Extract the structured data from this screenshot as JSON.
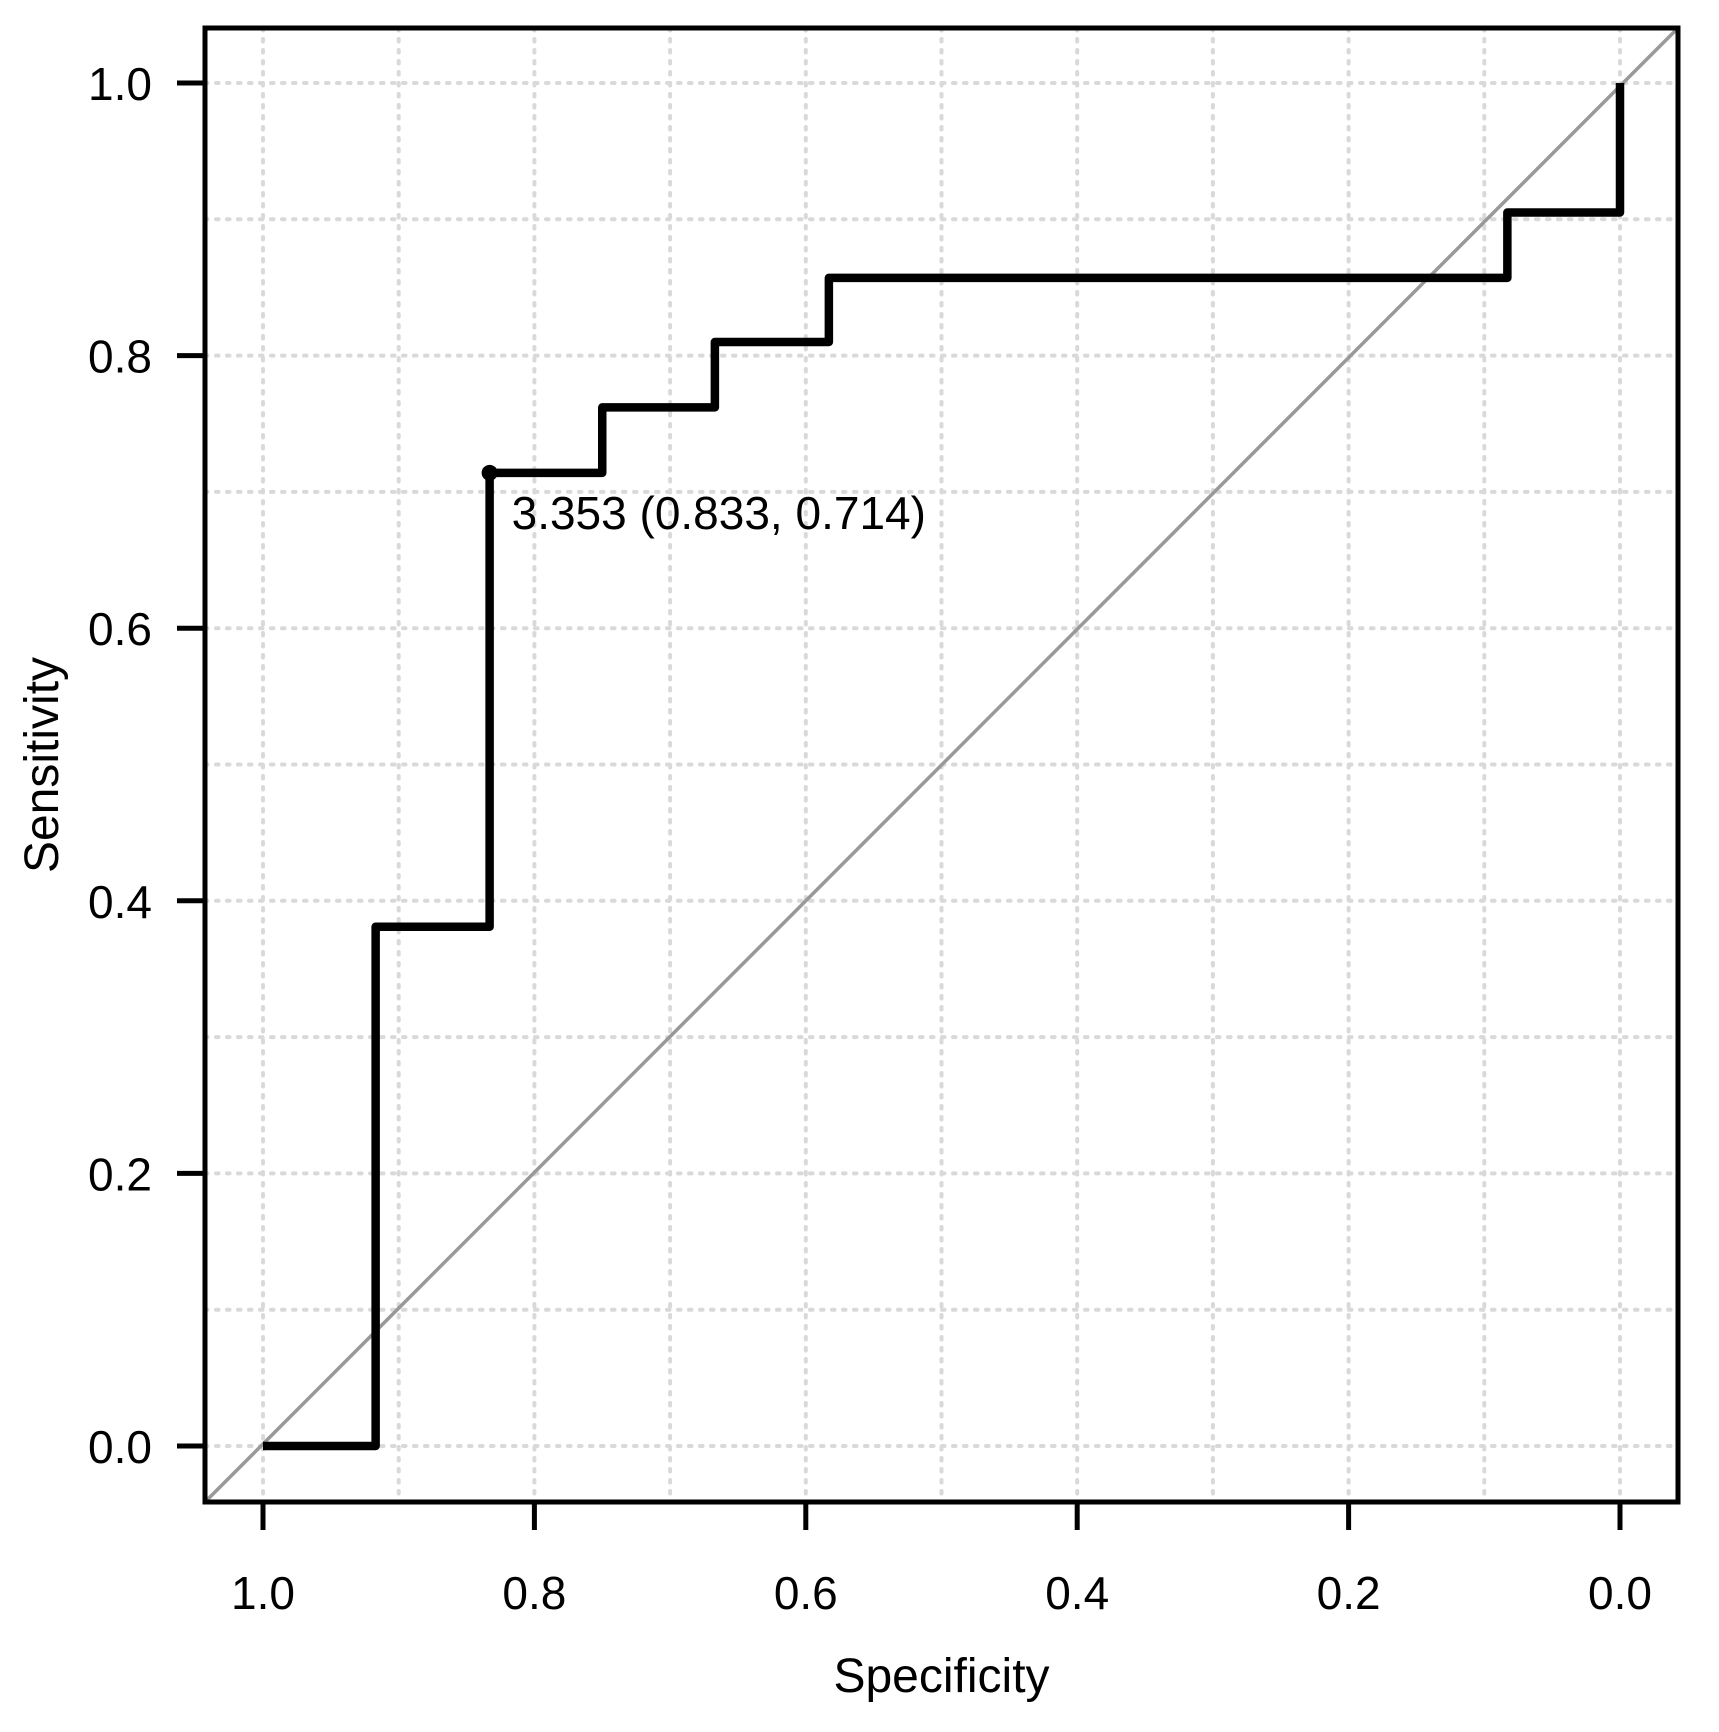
{
  "chart_data": {
    "type": "line",
    "subtype": "roc_step_curve",
    "title": "",
    "xlabel": "Specificity",
    "ylabel": "Sensitivity",
    "x_axis_reversed": true,
    "x_range": [
      1.0,
      0.0
    ],
    "y_range": [
      0.0,
      1.0
    ],
    "x_tick_labels": [
      "1.0",
      "0.8",
      "0.6",
      "0.4",
      "0.2",
      "0.0"
    ],
    "x_tick_values": [
      1.0,
      0.8,
      0.6,
      0.4,
      0.2,
      0.0
    ],
    "y_tick_labels": [
      "0.0",
      "0.2",
      "0.4",
      "0.6",
      "0.8",
      "1.0"
    ],
    "y_tick_values": [
      0.0,
      0.2,
      0.4,
      0.6,
      0.8,
      1.0
    ],
    "grid": {
      "show": true,
      "step": 0.1,
      "style": "dotted"
    },
    "legend": {
      "show": false
    },
    "series": [
      {
        "name": "ROC curve",
        "draw_style": "step",
        "color": "#000000",
        "points_format": [
          "specificity",
          "sensitivity"
        ],
        "points": [
          [
            1.0,
            0.0
          ],
          [
            0.917,
            0.0
          ],
          [
            0.917,
            0.381
          ],
          [
            0.833,
            0.381
          ],
          [
            0.833,
            0.714
          ],
          [
            0.75,
            0.714
          ],
          [
            0.75,
            0.762
          ],
          [
            0.667,
            0.762
          ],
          [
            0.667,
            0.81
          ],
          [
            0.583,
            0.81
          ],
          [
            0.583,
            0.857
          ],
          [
            0.083,
            0.857
          ],
          [
            0.083,
            0.905
          ],
          [
            0.0,
            0.905
          ],
          [
            0.0,
            1.0
          ]
        ]
      }
    ],
    "reference_line": {
      "name": "chance diagonal",
      "from": [
        1.0,
        0.0
      ],
      "to": [
        0.0,
        1.0
      ],
      "color": "#999999"
    },
    "annotation": {
      "label": "3.353 (0.833, 0.714)",
      "threshold": 3.353,
      "specificity": 0.833,
      "sensitivity": 0.714,
      "marker": "filled-circle",
      "color": "#000000"
    },
    "colors": {
      "background": "#ffffff",
      "grid": "#d9d9d9",
      "axis": "#000000",
      "curve": "#000000",
      "diagonal": "#999999",
      "text": "#000000"
    }
  }
}
